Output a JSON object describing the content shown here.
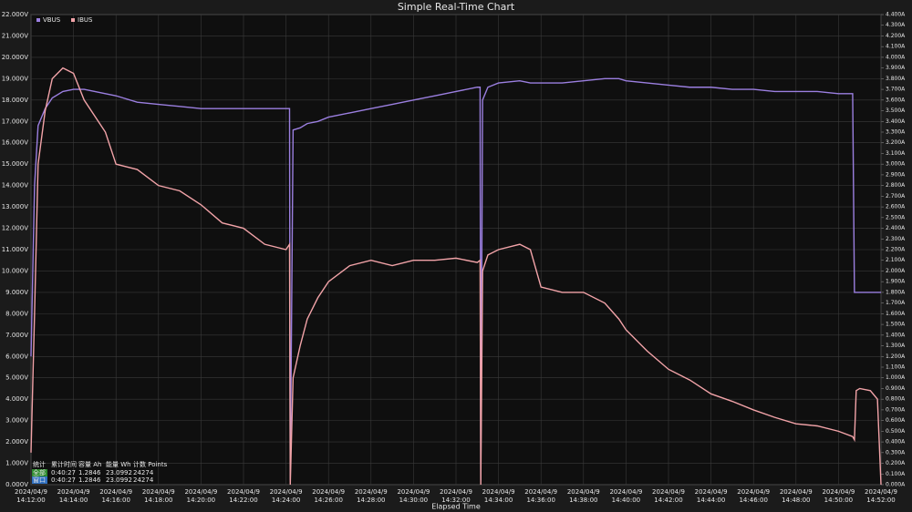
{
  "chart_data": {
    "type": "line",
    "title": "Simple Real-Time Chart",
    "x_label": "Elapsed Time",
    "xtick_date": "2024/04/9",
    "grid": true,
    "legend": "top-left",
    "xlim": [
      "14:12:00",
      "14:52:00"
    ],
    "xticks": [
      "14:12:00",
      "14:14:00",
      "14:16:00",
      "14:18:00",
      "14:20:00",
      "14:22:00",
      "14:24:00",
      "14:26:00",
      "14:28:00",
      "14:30:00",
      "14:32:00",
      "14:34:00",
      "14:36:00",
      "14:38:00",
      "14:40:00",
      "14:42:00",
      "14:44:00",
      "14:46:00",
      "14:48:00",
      "14:50:00",
      "14:52:00"
    ],
    "ylim": [
      0,
      22
    ],
    "yticks": [
      {
        "value": 0,
        "label": "0.000V"
      },
      {
        "value": 1,
        "label": "1.000V"
      },
      {
        "value": 2,
        "label": "2.000V"
      },
      {
        "value": 3,
        "label": "3.000V"
      },
      {
        "value": 4,
        "label": "4.000V"
      },
      {
        "value": 5,
        "label": "5.000V"
      },
      {
        "value": 6,
        "label": "6.000V"
      },
      {
        "value": 7,
        "label": "7.000V"
      },
      {
        "value": 8,
        "label": "8.000V"
      },
      {
        "value": 9,
        "label": "9.000V"
      },
      {
        "value": 10,
        "label": "10.000V"
      },
      {
        "value": 11,
        "label": "11.000V"
      },
      {
        "value": 12,
        "label": "12.000V"
      },
      {
        "value": 13,
        "label": "13.000V"
      },
      {
        "value": 14,
        "label": "14.000V"
      },
      {
        "value": 15,
        "label": "15.000V"
      },
      {
        "value": 16,
        "label": "16.000V"
      },
      {
        "value": 17,
        "label": "17.000V"
      },
      {
        "value": 18,
        "label": "18.000V"
      },
      {
        "value": 19,
        "label": "19.000V"
      },
      {
        "value": 20,
        "label": "20.000V"
      },
      {
        "value": 21,
        "label": "21.000V"
      },
      {
        "value": 22,
        "label": "22.000V"
      }
    ],
    "y2lim": [
      0,
      4.4
    ],
    "y2ticks": [
      {
        "value": 0,
        "label": "0.000A"
      },
      {
        "value": 0.1,
        "label": "0.100A"
      },
      {
        "value": 0.2,
        "label": "0.200A"
      },
      {
        "value": 0.3,
        "label": "0.300A"
      },
      {
        "value": 0.4,
        "label": "0.400A"
      },
      {
        "value": 0.5,
        "label": "0.500A"
      },
      {
        "value": 0.6,
        "label": "0.600A"
      },
      {
        "value": 0.7,
        "label": "0.700A"
      },
      {
        "value": 0.8,
        "label": "0.800A"
      },
      {
        "value": 0.9,
        "label": "0.900A"
      },
      {
        "value": 1.0,
        "label": "1.000A"
      },
      {
        "value": 1.1,
        "label": "1.100A"
      },
      {
        "value": 1.2,
        "label": "1.200A"
      },
      {
        "value": 1.3,
        "label": "1.300A"
      },
      {
        "value": 1.4,
        "label": "1.400A"
      },
      {
        "value": 1.5,
        "label": "1.500A"
      },
      {
        "value": 1.6,
        "label": "1.600A"
      },
      {
        "value": 1.7,
        "label": "1.700A"
      },
      {
        "value": 1.8,
        "label": "1.800A"
      },
      {
        "value": 1.9,
        "label": "1.900A"
      },
      {
        "value": 2.0,
        "label": "2.000A"
      },
      {
        "value": 2.1,
        "label": "2.100A"
      },
      {
        "value": 2.2,
        "label": "2.200A"
      },
      {
        "value": 2.3,
        "label": "2.300A"
      },
      {
        "value": 2.4,
        "label": "2.400A"
      },
      {
        "value": 2.5,
        "label": "2.500A"
      },
      {
        "value": 2.6,
        "label": "2.600A"
      },
      {
        "value": 2.7,
        "label": "2.700A"
      },
      {
        "value": 2.8,
        "label": "2.800A"
      },
      {
        "value": 2.9,
        "label": "2.900A"
      },
      {
        "value": 3.0,
        "label": "3.000A"
      },
      {
        "value": 3.1,
        "label": "3.100A"
      },
      {
        "value": 3.2,
        "label": "3.200A"
      },
      {
        "value": 3.3,
        "label": "3.300A"
      },
      {
        "value": 3.4,
        "label": "3.400A"
      },
      {
        "value": 3.5,
        "label": "3.500A"
      },
      {
        "value": 3.6,
        "label": "3.600A"
      },
      {
        "value": 3.7,
        "label": "3.700A"
      },
      {
        "value": 3.8,
        "label": "3.800A"
      },
      {
        "value": 3.9,
        "label": "3.900A"
      },
      {
        "value": 4.0,
        "label": "4.000A"
      },
      {
        "value": 4.1,
        "label": "4.100A"
      },
      {
        "value": 4.2,
        "label": "4.200A"
      },
      {
        "value": 4.3,
        "label": "4.300A"
      },
      {
        "value": 4.4,
        "label": "4.400A"
      }
    ],
    "x": [
      "14:12:00",
      "14:12:10",
      "14:12:20",
      "14:12:40",
      "14:13:00",
      "14:13:30",
      "14:14:00",
      "14:14:30",
      "14:15:00",
      "14:15:30",
      "14:16:00",
      "14:17:00",
      "14:18:00",
      "14:19:00",
      "14:20:00",
      "14:21:00",
      "14:22:00",
      "14:23:00",
      "14:24:00",
      "14:24:10",
      "14:24:12",
      "14:24:20",
      "14:24:40",
      "14:25:00",
      "14:25:30",
      "14:26:00",
      "14:27:00",
      "14:28:00",
      "14:29:00",
      "14:30:00",
      "14:31:00",
      "14:32:00",
      "14:33:00",
      "14:33:08",
      "14:33:10",
      "14:33:15",
      "14:33:30",
      "14:34:00",
      "14:35:00",
      "14:35:30",
      "14:36:00",
      "14:37:00",
      "14:38:00",
      "14:39:00",
      "14:39:40",
      "14:40:00",
      "14:41:00",
      "14:42:00",
      "14:43:00",
      "14:44:00",
      "14:45:00",
      "14:46:00",
      "14:47:00",
      "14:48:00",
      "14:49:00",
      "14:50:00",
      "14:50:40",
      "14:50:45",
      "14:50:50",
      "14:51:00",
      "14:51:30",
      "14:51:50",
      "14:52:00"
    ],
    "series": [
      {
        "name": "VBUS",
        "color": "#9b7fe0",
        "axis": "y",
        "values": [
          6.0,
          14.0,
          16.8,
          17.6,
          18.1,
          18.4,
          18.5,
          18.5,
          18.4,
          18.3,
          18.2,
          17.9,
          17.8,
          17.7,
          17.6,
          17.6,
          17.6,
          17.6,
          17.6,
          17.6,
          0.2,
          16.6,
          16.7,
          16.9,
          17.0,
          17.2,
          17.4,
          17.6,
          17.8,
          18.0,
          18.2,
          18.4,
          18.6,
          18.6,
          0.2,
          18.0,
          18.6,
          18.8,
          18.9,
          18.8,
          18.8,
          18.8,
          18.9,
          19.0,
          19.0,
          18.9,
          18.8,
          18.7,
          18.6,
          18.6,
          18.5,
          18.5,
          18.4,
          18.4,
          18.4,
          18.3,
          18.3,
          9.0,
          9.0,
          9.0,
          9.0,
          9.0,
          9.0
        ]
      },
      {
        "name": "IBUS",
        "color": "#f2a3a8",
        "axis": "y2",
        "values": [
          0.3,
          1.6,
          3.0,
          3.5,
          3.8,
          3.9,
          3.85,
          3.6,
          3.45,
          3.3,
          3.0,
          2.95,
          2.8,
          2.75,
          2.62,
          2.45,
          2.4,
          2.25,
          2.2,
          2.25,
          0.0,
          1.0,
          1.3,
          1.55,
          1.75,
          1.9,
          2.05,
          2.1,
          2.05,
          2.1,
          2.1,
          2.12,
          2.08,
          2.1,
          0.0,
          2.0,
          2.15,
          2.2,
          2.25,
          2.2,
          1.85,
          1.8,
          1.8,
          1.7,
          1.55,
          1.45,
          1.25,
          1.08,
          0.98,
          0.85,
          0.78,
          0.7,
          0.63,
          0.57,
          0.55,
          0.5,
          0.45,
          0.42,
          0.88,
          0.9,
          0.88,
          0.8,
          0.0
        ]
      }
    ]
  },
  "stats_table": {
    "header": [
      "统计",
      "累计时间",
      "容量 Ah",
      "能量 Wh",
      "计数 Points"
    ],
    "rows": [
      [
        "全部",
        "0:40:27",
        1.2846,
        23.0992,
        24274
      ],
      [
        "窗口",
        "0:40:27",
        1.2846,
        23.0992,
        24274
      ]
    ]
  }
}
